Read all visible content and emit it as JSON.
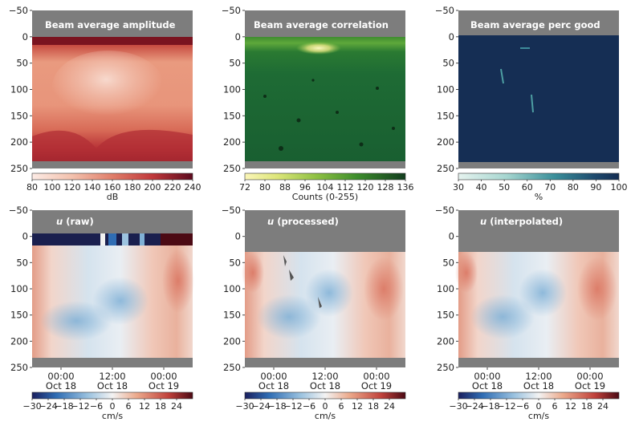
{
  "chart_data": [
    {
      "type": "heatmap",
      "title": "Beam average amplitude",
      "ylim": [
        250,
        -50
      ],
      "yticks": [
        "-50",
        "0",
        "50",
        "100",
        "150",
        "200",
        "250"
      ],
      "colorbar": {
        "label": "dB",
        "range": [
          80,
          240
        ],
        "ticks": [
          "80",
          "100",
          "120",
          "140",
          "160",
          "180",
          "200",
          "220",
          "240"
        ],
        "colormap": "reds"
      }
    },
    {
      "type": "heatmap",
      "title": "Beam average correlation",
      "ylim": [
        250,
        -50
      ],
      "yticks": [
        "-50",
        "0",
        "50",
        "100",
        "150",
        "200",
        "250"
      ],
      "colorbar": {
        "label": "Counts (0-255)",
        "range": [
          72,
          136
        ],
        "ticks": [
          "72",
          "80",
          "88",
          "96",
          "104",
          "112",
          "120",
          "128",
          "136"
        ],
        "colormap": "yellow-green"
      }
    },
    {
      "type": "heatmap",
      "title": "Beam average perc good",
      "ylim": [
        250,
        -50
      ],
      "yticks": [
        "-50",
        "0",
        "50",
        "100",
        "150",
        "200",
        "250"
      ],
      "colorbar": {
        "label": "%",
        "range": [
          30,
          100
        ],
        "ticks": [
          "30",
          "40",
          "50",
          "60",
          "70",
          "80",
          "90",
          "100"
        ],
        "colormap": "teal-navy"
      }
    },
    {
      "type": "heatmap",
      "title_var": "u",
      "title_rest": " (raw)",
      "ylim": [
        250,
        -50
      ],
      "yticks": [
        "-50",
        "0",
        "50",
        "100",
        "150",
        "200",
        "250"
      ],
      "xticks": [
        {
          "time": "00:00",
          "date": "Oct 18"
        },
        {
          "time": "12:00",
          "date": "Oct 18"
        },
        {
          "time": "00:00",
          "date": "Oct 19"
        }
      ],
      "colorbar": {
        "label": "cm/s",
        "range": [
          -30,
          30
        ],
        "ticks": [
          "−30",
          "−24",
          "−18",
          "−12",
          "−6",
          "0",
          "6",
          "12",
          "18",
          "24"
        ],
        "colormap": "diverging"
      }
    },
    {
      "type": "heatmap",
      "title_var": "u",
      "title_rest": " (processed)",
      "ylim": [
        250,
        -50
      ],
      "yticks": [
        "-50",
        "0",
        "50",
        "100",
        "150",
        "200",
        "250"
      ],
      "xticks": [
        {
          "time": "00:00",
          "date": "Oct 18"
        },
        {
          "time": "12:00",
          "date": "Oct 18"
        },
        {
          "time": "00:00",
          "date": "Oct 19"
        }
      ],
      "colorbar": {
        "label": "cm/s",
        "range": [
          -30,
          30
        ],
        "ticks": [
          "−30",
          "−24",
          "−18",
          "−12",
          "−6",
          "0",
          "6",
          "12",
          "18",
          "24"
        ],
        "colormap": "diverging"
      }
    },
    {
      "type": "heatmap",
      "title_var": "u",
      "title_rest": " (interpolated)",
      "ylim": [
        250,
        -50
      ],
      "yticks": [
        "-50",
        "0",
        "50",
        "100",
        "150",
        "200",
        "250"
      ],
      "xticks": [
        {
          "time": "00:00",
          "date": "Oct 18"
        },
        {
          "time": "12:00",
          "date": "Oct 18"
        },
        {
          "time": "00:00",
          "date": "Oct 19"
        }
      ],
      "colorbar": {
        "label": "cm/s",
        "range": [
          -30,
          30
        ],
        "ticks": [
          "−30",
          "−24",
          "−18",
          "−12",
          "−6",
          "0",
          "6",
          "12",
          "18",
          "24"
        ],
        "colormap": "diverging"
      }
    }
  ]
}
